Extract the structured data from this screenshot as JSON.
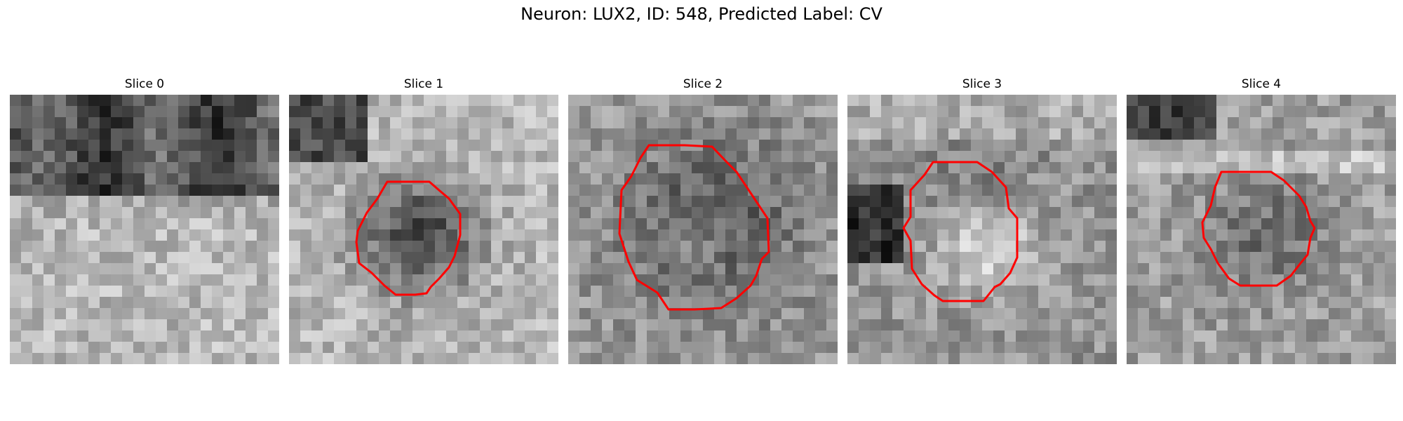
{
  "figure": {
    "title": "Neuron: LUX2, ID: 548, Predicted Label: CV"
  },
  "panels": [
    {
      "title": "Slice 0",
      "has_contour": false
    },
    {
      "title": "Slice 1",
      "has_contour": true
    },
    {
      "title": "Slice 2",
      "has_contour": true
    },
    {
      "title": "Slice 3",
      "has_contour": true
    },
    {
      "title": "Slice 4",
      "has_contour": true
    }
  ],
  "colors": {
    "contour": "#ff0000",
    "background": "#ffffff"
  }
}
